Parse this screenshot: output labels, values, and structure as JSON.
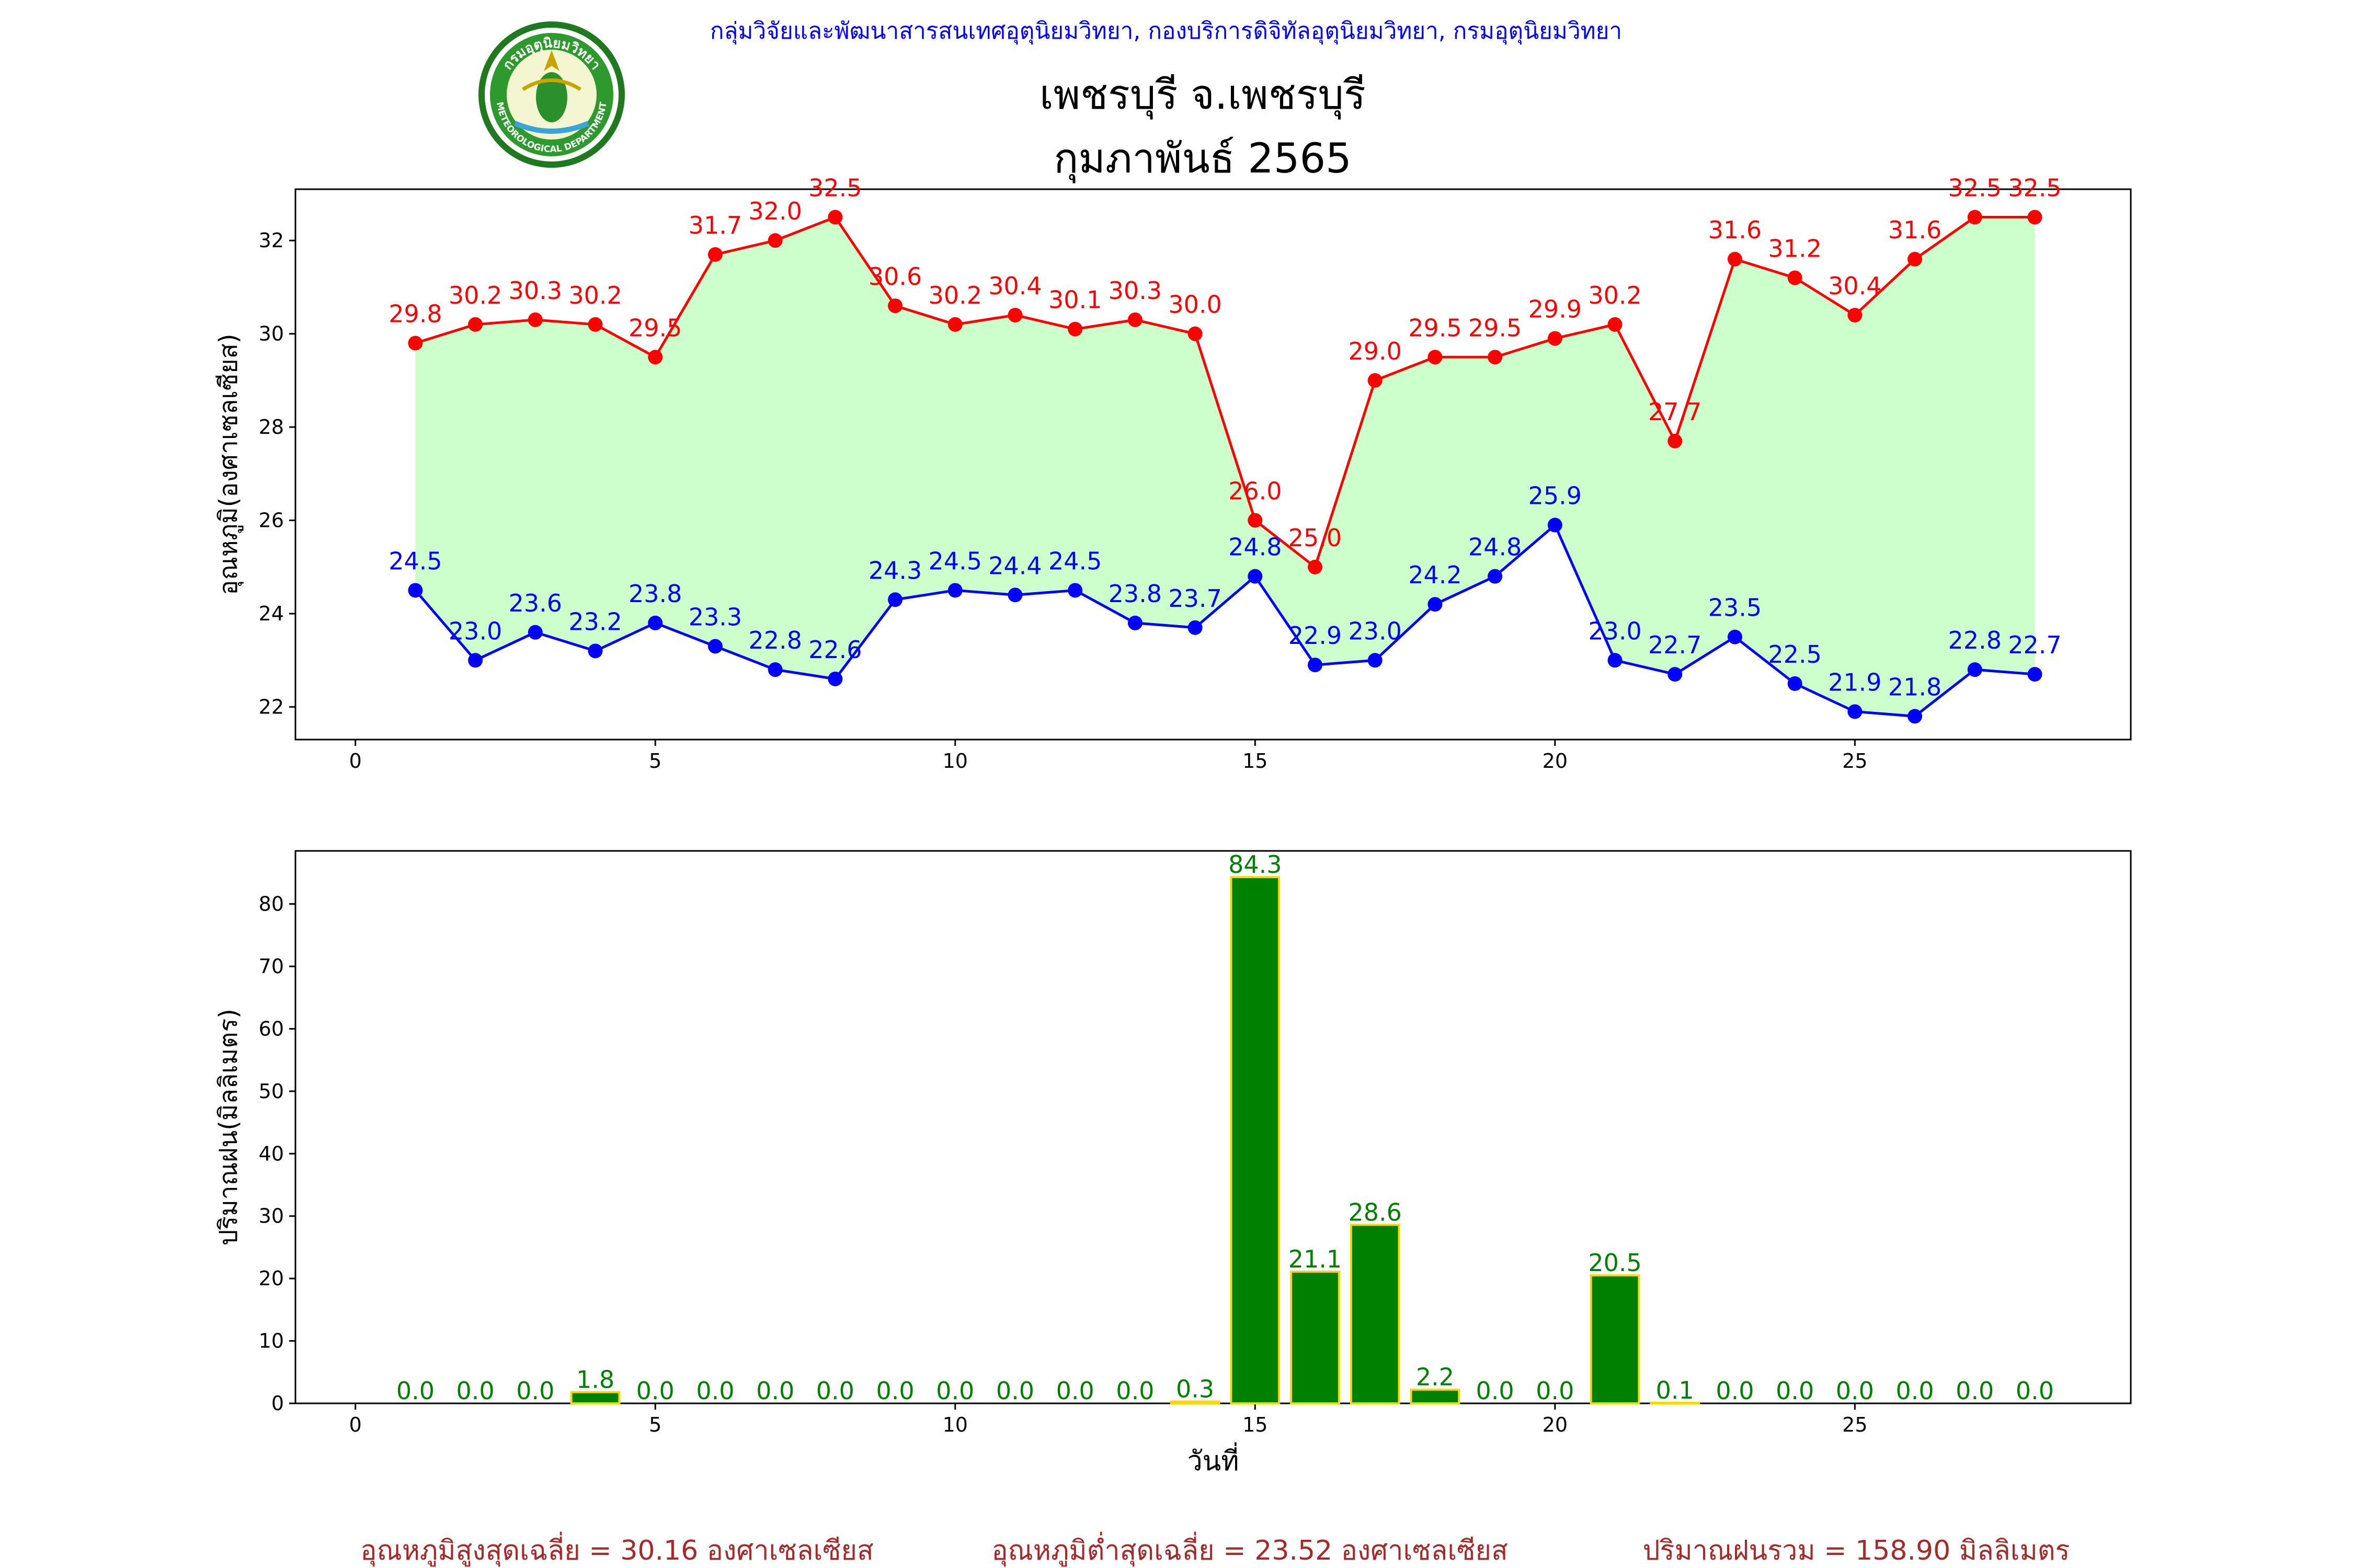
{
  "header": {
    "agency": "กลุ่มวิจัยและพัฒนาสารสนเทศอุตุนิยมวิทยา, กองบริการดิจิทัลอุตุนิยมวิทยา, กรมอุตุนิยมวิทยา",
    "station": "เพชรบุรี จ.เพชรบุรี",
    "period": "กุมภาพันธ์ 2565",
    "logo_text": [
      "กรมอุตุนิยมวิทยา",
      "METEOROLOGICAL DEPARTMENT"
    ]
  },
  "colors": {
    "max_temp": "#ff0000",
    "min_temp": "#0000ff",
    "range_fill": "#ccffcc",
    "rain_bar": "#008000",
    "rain_edge": "#ffd700",
    "footer": "#a52a2a",
    "agency": "#0000ff"
  },
  "chart_data": [
    {
      "type": "line",
      "ylabel": "อุณหภูมิ(องศาเซลเซียส)",
      "xlim": [
        -1,
        29.6
      ],
      "ylim": [
        21.3,
        33.1
      ],
      "xticks": [
        0,
        5,
        10,
        15,
        20,
        25
      ],
      "yticks": [
        22,
        24,
        26,
        28,
        30,
        32
      ],
      "grid": false,
      "x": [
        1,
        2,
        3,
        4,
        5,
        6,
        7,
        8,
        9,
        10,
        11,
        12,
        13,
        14,
        15,
        16,
        17,
        18,
        19,
        20,
        21,
        22,
        23,
        24,
        25,
        26,
        27,
        28
      ],
      "series": [
        {
          "key": "max",
          "values": [
            29.8,
            30.2,
            30.3,
            30.2,
            29.5,
            31.7,
            32.0,
            32.5,
            30.6,
            30.2,
            30.4,
            30.1,
            30.3,
            30.0,
            26.0,
            25.0,
            29.0,
            29.5,
            29.5,
            29.9,
            30.2,
            27.7,
            31.6,
            31.2,
            30.4,
            31.6,
            32.5,
            32.5
          ]
        },
        {
          "key": "min",
          "values": [
            24.5,
            23.0,
            23.6,
            23.2,
            23.8,
            23.3,
            22.8,
            22.6,
            24.3,
            24.5,
            24.4,
            24.5,
            23.8,
            23.7,
            24.8,
            22.9,
            23.0,
            24.2,
            24.8,
            25.9,
            23.0,
            22.7,
            23.5,
            22.5,
            21.9,
            21.8,
            22.8,
            22.7
          ]
        }
      ]
    },
    {
      "type": "bar",
      "ylabel": "ปริมาณฝน(มิลลิเมตร)",
      "xlabel": "วันที่",
      "xlim": [
        -1,
        29.6
      ],
      "ylim": [
        0,
        88.5
      ],
      "xticks": [
        0,
        5,
        10,
        15,
        20,
        25
      ],
      "yticks": [
        0,
        10,
        20,
        30,
        40,
        50,
        60,
        70,
        80
      ],
      "grid": false,
      "x": [
        1,
        2,
        3,
        4,
        5,
        6,
        7,
        8,
        9,
        10,
        11,
        12,
        13,
        14,
        15,
        16,
        17,
        18,
        19,
        20,
        21,
        22,
        23,
        24,
        25,
        26,
        27,
        28
      ],
      "values": [
        0.0,
        0.0,
        0.0,
        1.8,
        0.0,
        0.0,
        0.0,
        0.0,
        0.0,
        0.0,
        0.0,
        0.0,
        0.0,
        0.3,
        84.3,
        21.1,
        28.6,
        2.2,
        0.0,
        0.0,
        20.5,
        0.1,
        0.0,
        0.0,
        0.0,
        0.0,
        0.0,
        0.0
      ]
    }
  ],
  "footer": {
    "avg_max": "อุณหภูมิสูงสุดเฉลี่ย = 30.16 องศาเซลเซียส",
    "avg_min": "อุณหภูมิต่ำสุดเฉลี่ย = 23.52 องศาเซลเซียส",
    "total_rain": "ปริมาณฝนรวม = 158.90 มิลลิเมตร"
  }
}
